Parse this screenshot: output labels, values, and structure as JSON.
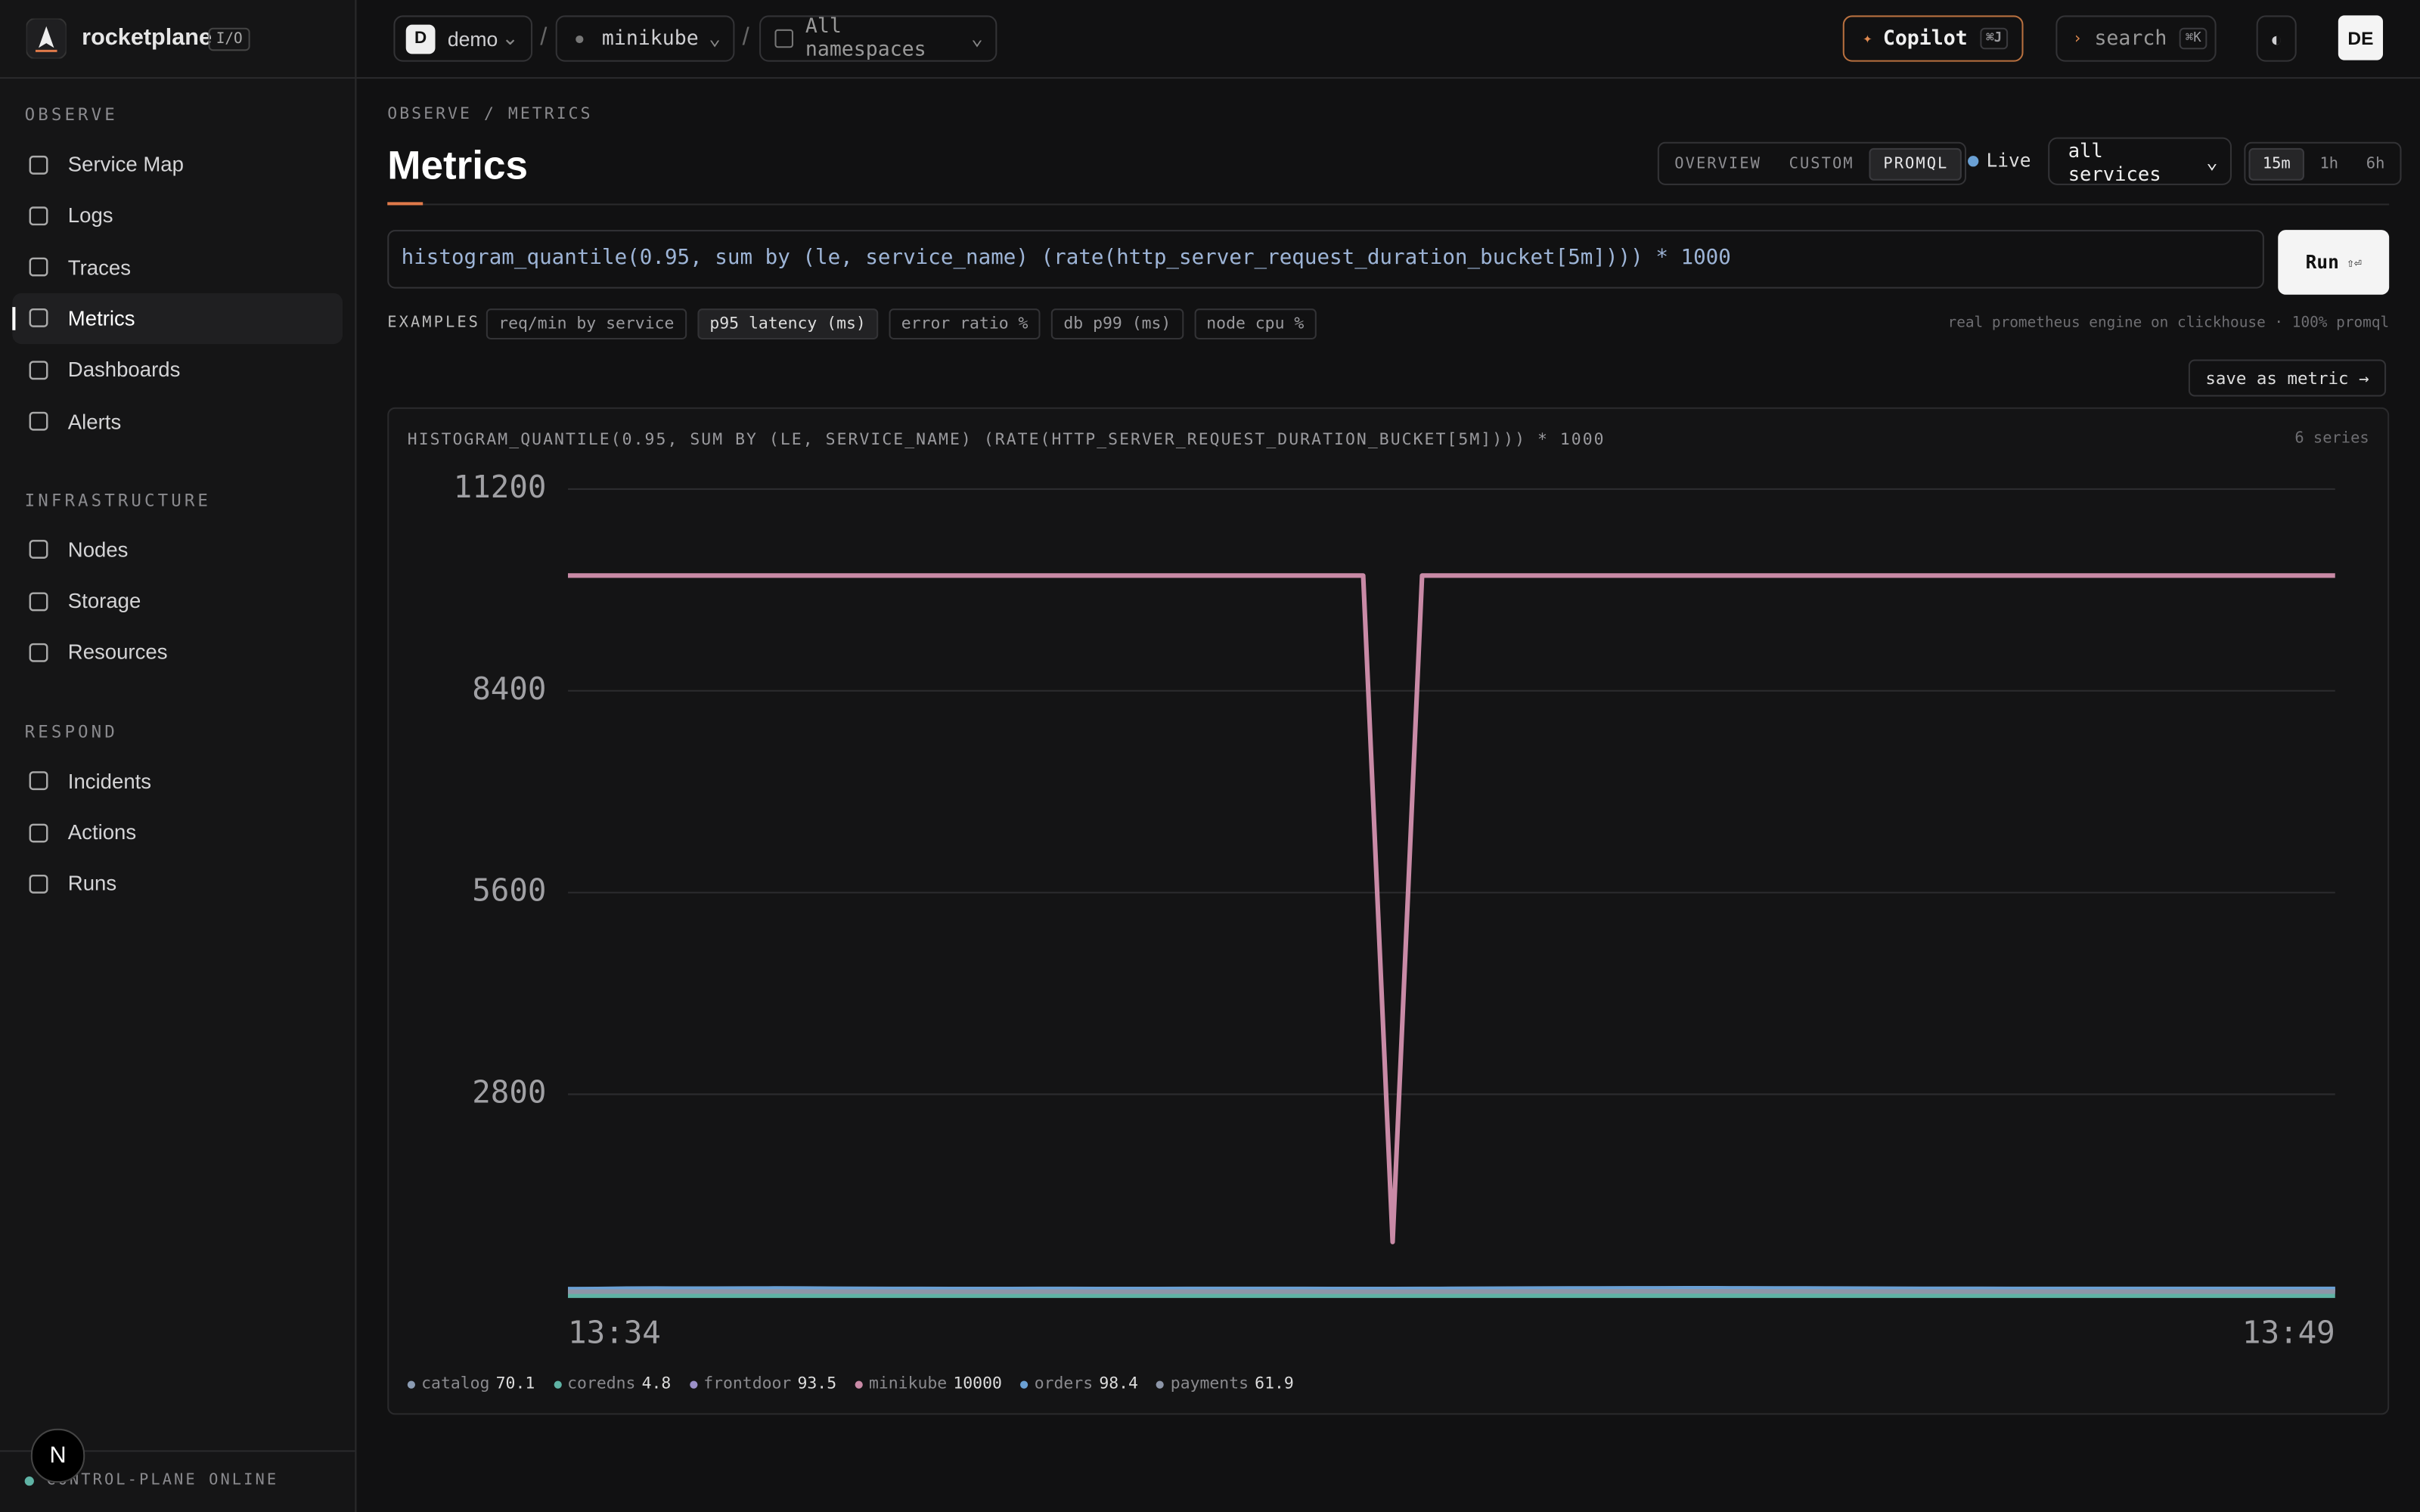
{
  "brand": {
    "name": "rocketplane",
    "badge": "I/O"
  },
  "topbar": {
    "workspace_initial": "D",
    "workspace": "demo",
    "cluster": "minikube",
    "namespace": "All namespaces",
    "copilot": "Copilot",
    "copilot_key": "⌘J",
    "search": "search",
    "search_key": "⌘K",
    "user": "DE"
  },
  "sidebar": {
    "sections": [
      {
        "title": "OBSERVE",
        "items": [
          "Service Map",
          "Logs",
          "Traces",
          "Metrics",
          "Dashboards",
          "Alerts"
        ]
      },
      {
        "title": "INFRASTRUCTURE",
        "items": [
          "Nodes",
          "Storage",
          "Resources"
        ]
      },
      {
        "title": "RESPOND",
        "items": [
          "Incidents",
          "Actions",
          "Runs"
        ]
      }
    ],
    "active": "Metrics",
    "status": "CONTROL-PLANE ONLINE",
    "badge": "N"
  },
  "header": {
    "breadcrumb": "OBSERVE / METRICS",
    "title": "Metrics",
    "tabs": [
      "OVERVIEW",
      "CUSTOM",
      "PROMQL"
    ],
    "active_tab": "PROMQL",
    "live": "Live",
    "service_filter": "all services",
    "ranges": [
      "15m",
      "1h",
      "6h"
    ],
    "active_range": "15m"
  },
  "query": {
    "text": "histogram_quantile(0.95, sum by (le, service_name) (rate(http_server_request_duration_bucket[5m]))) * 1000",
    "run": "Run",
    "run_key": "⇧⏎"
  },
  "examples": {
    "label": "EXAMPLES",
    "items": [
      "req/min by service",
      "p95 latency (ms)",
      "error ratio %",
      "db p99 (ms)",
      "node cpu %"
    ],
    "active": "p95 latency (ms)",
    "engine_note": "real prometheus engine on clickhouse · 100% promql",
    "save": "save as metric →"
  },
  "panel": {
    "title": "HISTOGRAM_QUANTILE(0.95, SUM BY (LE, SERVICE_NAME) (RATE(HTTP_SERVER_REQUEST_DURATION_BUCKET[5M]))) * 1000",
    "series_count": "6 series"
  },
  "chart_data": {
    "type": "line",
    "x": [
      "13:34",
      null,
      null,
      null,
      null,
      null,
      null,
      null,
      null,
      null,
      null,
      null,
      null,
      null,
      null,
      null,
      null,
      null,
      null,
      null,
      null,
      null,
      null,
      null,
      null,
      null,
      null,
      null,
      null,
      null,
      null,
      null,
      null,
      null,
      null,
      null,
      null,
      null,
      null,
      null,
      null,
      null,
      null,
      null,
      null,
      null,
      null,
      null,
      null,
      null,
      null,
      null,
      null,
      null,
      null,
      null,
      null,
      null,
      null,
      null,
      "13:49"
    ],
    "ylim": [
      0,
      11200
    ],
    "yticks": [
      2800,
      5600,
      8400,
      11200
    ],
    "grid": true,
    "series": [
      {
        "name": "catalog",
        "color": "#8b9cb3",
        "values": [
          68.2,
          69.5,
          71.3,
          72.0,
          70.8,
          69.9,
          70.4,
          71.1,
          72.5,
          71.8,
          70.2,
          69.4,
          68.9,
          69.7,
          70.5,
          71.2,
          70.9,
          70.1,
          69.6,
          69.2,
          69.8,
          70.3,
          70.7,
          71.0,
          70.6,
          70.2,
          69.9,
          69.5,
          69.8,
          70.4,
          70.9,
          71.3,
          71.0,
          70.5,
          70.1,
          69.7,
          69.4,
          69.9,
          70.6,
          71.4,
          72.1,
          72.8,
          73.0,
          72.4,
          71.7,
          71.1,
          70.6,
          70.2,
          69.8,
          69.6,
          69.9,
          70.3,
          70.7,
          71.0,
          70.8,
          70.4,
          70.2,
          70.0,
          69.9,
          70.0,
          70.1
        ]
      },
      {
        "name": "coredns",
        "color": "#5fb3a5",
        "values": [
          4.6,
          4.8,
          5.0,
          4.9,
          4.7,
          4.8,
          5.1,
          5.0,
          4.8,
          4.7,
          4.6,
          4.8,
          4.9,
          5.0,
          4.8,
          4.7,
          4.9,
          5.0,
          4.8,
          4.6,
          4.7,
          4.9,
          5.0,
          4.9,
          4.8,
          4.7,
          4.8,
          4.9,
          5.0,
          4.8,
          4.7,
          4.8,
          4.9,
          5.1,
          5.0,
          4.8,
          4.7,
          4.6,
          4.8,
          4.9,
          5.0,
          5.1,
          4.9,
          4.8,
          4.7,
          4.8,
          4.9,
          4.8,
          4.7,
          4.8,
          4.9,
          5.0,
          4.8,
          4.7,
          4.8,
          4.9,
          4.8,
          4.7,
          4.8,
          4.9,
          4.8
        ]
      },
      {
        "name": "frontdoor",
        "color": "#9b90c8",
        "values": [
          90.1,
          92.4,
          96.8,
          98.2,
          97.5,
          96.9,
          98.8,
          99.4,
          98.1,
          96.3,
          94.2,
          93.0,
          92.5,
          92.1,
          91.8,
          92.0,
          92.3,
          92.6,
          92.2,
          91.9,
          92.0,
          92.4,
          92.8,
          93.1,
          92.7,
          92.3,
          92.0,
          91.8,
          92.1,
          92.5,
          93.4,
          94.8,
          96.2,
          97.0,
          97.4,
          97.9,
          98.6,
          99.3,
          99.8,
          100.2,
          99.6,
          98.7,
          97.8,
          96.9,
          96.0,
          95.2,
          94.6,
          94.1,
          93.8,
          93.5,
          93.3,
          93.1,
          93.2,
          93.4,
          93.6,
          93.7,
          93.5,
          93.4,
          93.3,
          93.4,
          93.5
        ]
      },
      {
        "name": "minikube",
        "color": "#c98aa6",
        "values": [
          10000,
          10000,
          10000,
          10000,
          10000,
          10000,
          10000,
          10000,
          10000,
          10000,
          10000,
          10000,
          10000,
          10000,
          10000,
          10000,
          10000,
          10000,
          10000,
          10000,
          10000,
          10000,
          10000,
          10000,
          10000,
          10000,
          10000,
          10000,
          750,
          10000,
          10000,
          10000,
          10000,
          10000,
          10000,
          10000,
          10000,
          10000,
          10000,
          10000,
          10000,
          10000,
          10000,
          10000,
          10000,
          10000,
          10000,
          10000,
          10000,
          10000,
          10000,
          10000,
          10000,
          10000,
          10000,
          10000,
          10000,
          10000,
          10000,
          10000,
          10000
        ]
      },
      {
        "name": "orders",
        "color": "#6aa0d4",
        "values": [
          95.2,
          97.1,
          101.4,
          103.0,
          102.2,
          101.5,
          103.6,
          104.1,
          103.0,
          101.2,
          99.5,
          98.3,
          97.8,
          97.5,
          97.2,
          97.4,
          97.6,
          97.9,
          97.5,
          97.2,
          97.3,
          97.7,
          98.1,
          98.4,
          98.0,
          97.6,
          97.3,
          97.1,
          97.4,
          97.8,
          98.9,
          100.6,
          102.3,
          103.5,
          104.2,
          104.8,
          105.5,
          106.1,
          106.6,
          106.9,
          106.2,
          105.1,
          104.0,
          102.8,
          101.7,
          100.8,
          100.0,
          99.4,
          99.0,
          98.7,
          98.5,
          98.3,
          98.4,
          98.5,
          98.7,
          98.8,
          98.6,
          98.5,
          98.3,
          98.4,
          98.4
        ]
      },
      {
        "name": "payments",
        "color": "#8d96a8",
        "values": [
          60.4,
          61.2,
          62.5,
          63.1,
          62.6,
          62.1,
          63.0,
          63.4,
          62.7,
          61.9,
          61.2,
          60.8,
          60.6,
          60.5,
          60.4,
          60.6,
          60.8,
          61.0,
          60.7,
          60.5,
          60.6,
          60.9,
          61.2,
          61.4,
          61.1,
          60.8,
          60.6,
          60.5,
          60.7,
          61.0,
          61.6,
          62.4,
          63.2,
          63.8,
          64.1,
          64.4,
          64.8,
          65.1,
          65.3,
          65.4,
          65.0,
          64.4,
          63.8,
          63.2,
          62.7,
          62.3,
          62.0,
          61.8,
          61.7,
          61.6,
          61.6,
          61.7,
          61.8,
          61.9,
          62.0,
          62.0,
          61.9,
          61.8,
          61.8,
          61.9,
          61.9
        ]
      }
    ]
  }
}
